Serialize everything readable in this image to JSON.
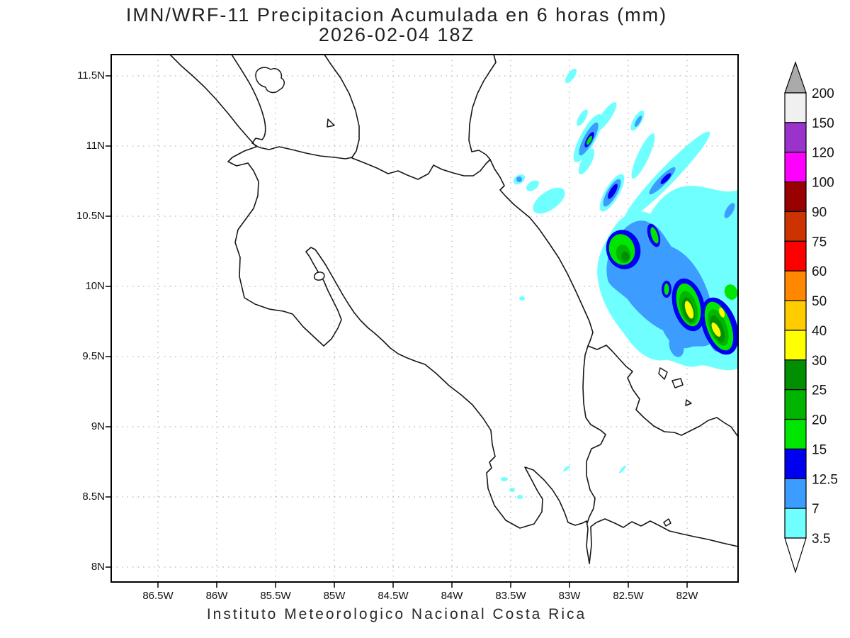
{
  "title": {
    "line1": "IMN/WRF-11 Precipitacion Acumulada en 6 horas (mm)",
    "line2": "2026-02-04 18Z"
  },
  "footer": {
    "caption": "Instituto Meteorologico Nacional Costa Rica"
  },
  "axes": {
    "y_labels": [
      "11.5N",
      "11N",
      "10.5N",
      "10N",
      "9.5N",
      "9N",
      "8.5N",
      "8N"
    ],
    "x_labels": [
      "86.5W",
      "86W",
      "85.5W",
      "85W",
      "84.5W",
      "84W",
      "83.5W",
      "83W",
      "82.5W",
      "82W"
    ]
  },
  "colorbar": {
    "units": "mm",
    "boundary_labels": [
      "200",
      "150",
      "120",
      "100",
      "90",
      "75",
      "60",
      "50",
      "40",
      "30",
      "25",
      "20",
      "15",
      "12.5",
      "7",
      "3.5"
    ],
    "box_colors_top_to_bottom": [
      "#f0f0f0",
      "#9933cc",
      "#ff00ff",
      "#990000",
      "#cc3300",
      "#ff0000",
      "#ff8800",
      "#ffcc00",
      "#ffff00",
      "#008f00",
      "#00b400",
      "#00e600",
      "#0000f0",
      "#3c9cff",
      "#70ffff"
    ],
    "top_arrow_color": "#aaaaaa",
    "bottom_arrow_color": "#ffffff",
    "outline_color": "#000000"
  },
  "map_style": {
    "gridline_color": "#b5b5b5",
    "frame_color": "#000000",
    "coast_color": "#161616"
  }
}
